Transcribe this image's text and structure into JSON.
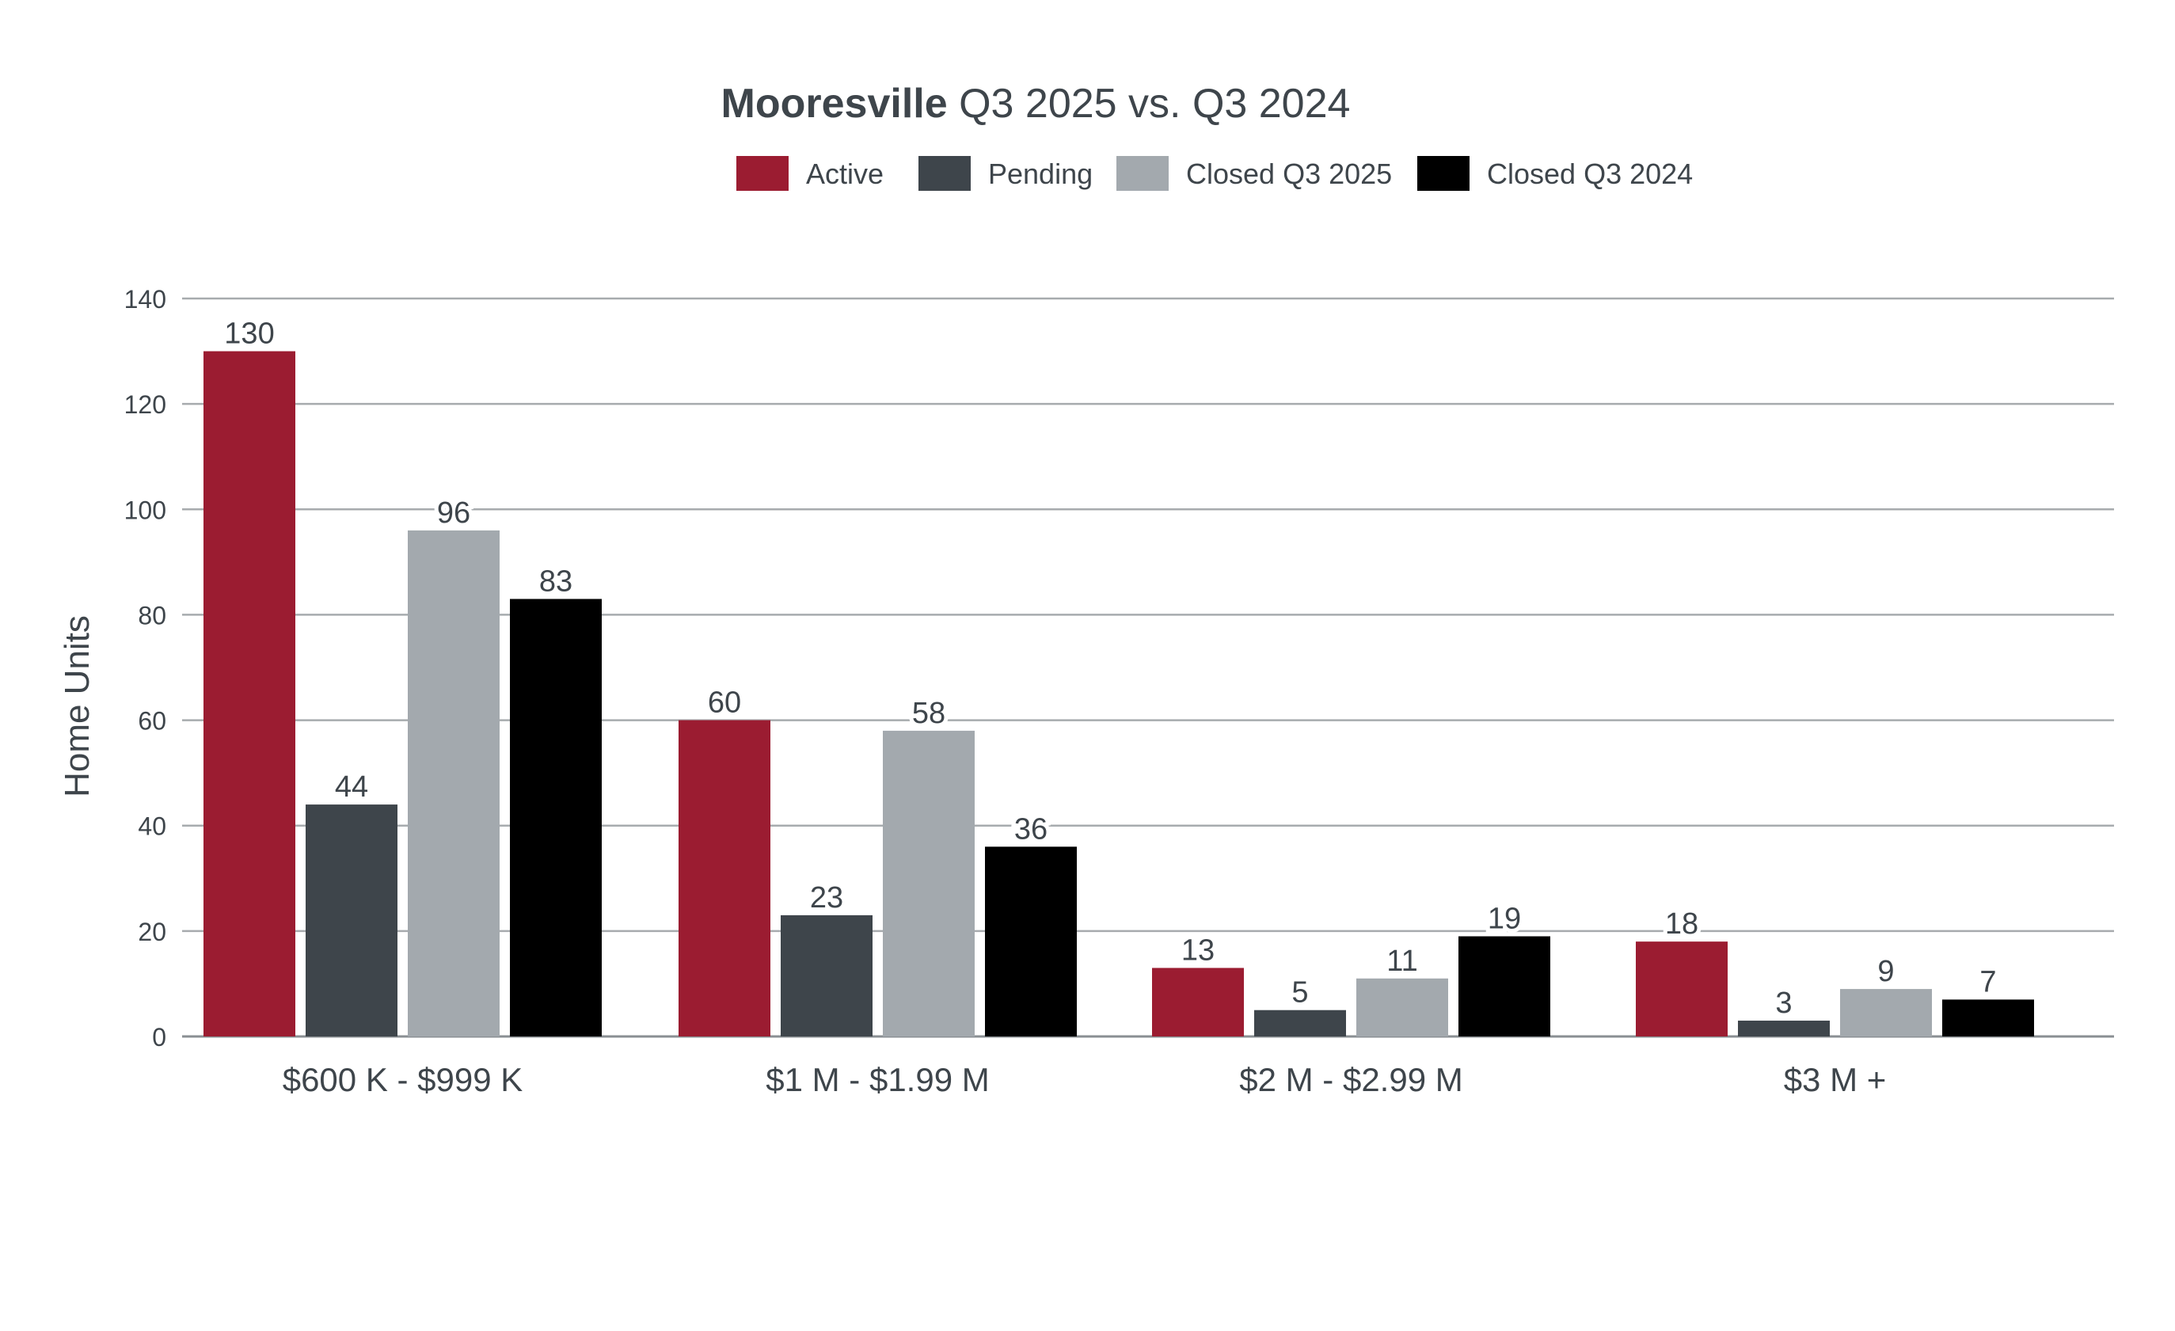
{
  "chart_data": {
    "type": "bar",
    "title": {
      "bold": "Mooresville",
      "rest": " Q3 2025 vs. Q3 2024"
    },
    "xlabel": "",
    "ylabel": "Home Units",
    "ylim": [
      0,
      140
    ],
    "yticks": [
      0,
      20,
      40,
      60,
      80,
      100,
      120,
      140
    ],
    "grid": true,
    "legend_position": "top-center",
    "categories": [
      "$600 K - $999 K",
      "$1 M - $1.99 M",
      "$2 M - $2.99 M",
      "$3 M +"
    ],
    "series": [
      {
        "name": "Active",
        "color": "#9B1C31",
        "values": [
          130,
          60,
          13,
          18
        ]
      },
      {
        "name": "Pending",
        "color": "#3E454B",
        "values": [
          44,
          23,
          5,
          3
        ]
      },
      {
        "name": "Closed Q3 2025",
        "color": "#A3A9AE",
        "values": [
          96,
          58,
          11,
          9
        ]
      },
      {
        "name": "Closed Q3 2024",
        "color": "#000000",
        "values": [
          83,
          36,
          19,
          7
        ]
      }
    ]
  }
}
